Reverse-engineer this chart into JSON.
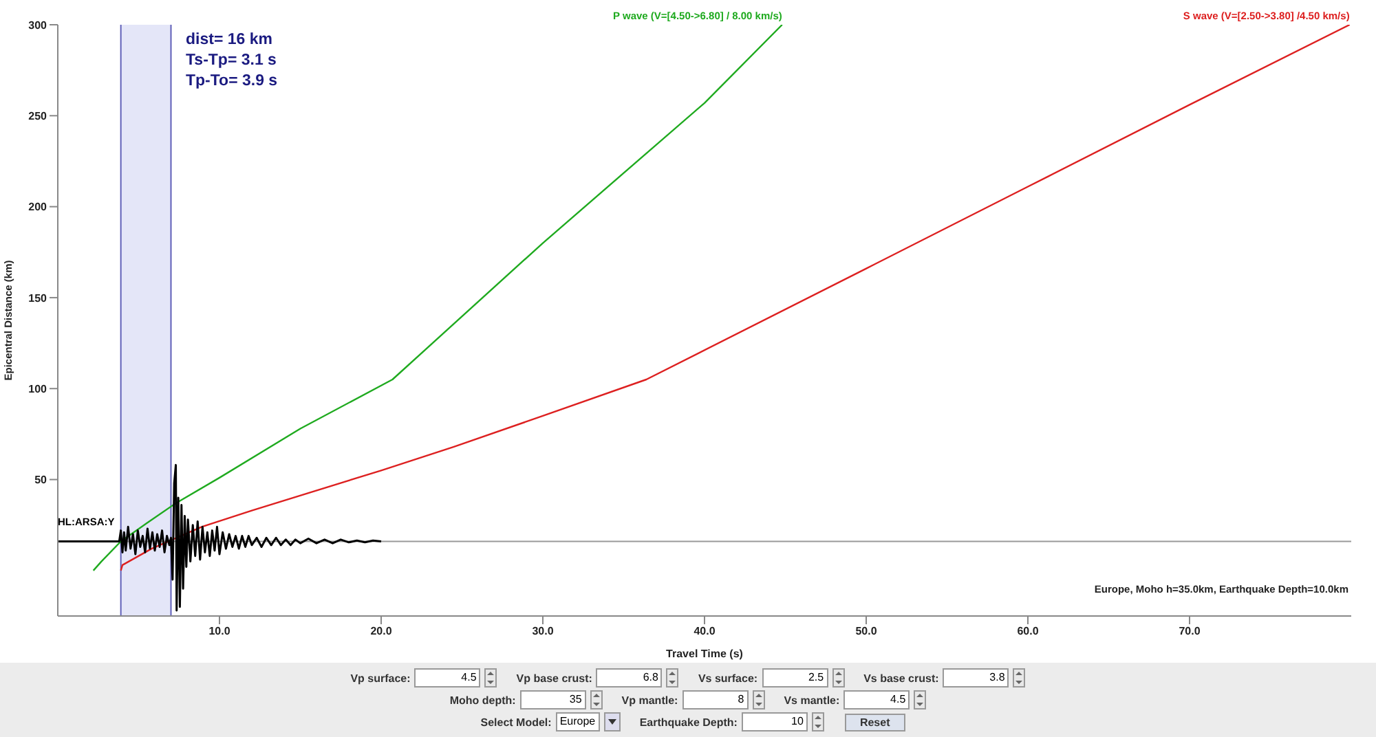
{
  "chart_data": {
    "type": "line",
    "xlabel": "Travel Time (s)",
    "ylabel": "Epicentral Distance (km)",
    "xlim": [
      0,
      80
    ],
    "xticks": [
      {
        "value": 10,
        "label": "10.0"
      },
      {
        "value": 20,
        "label": "20.0"
      },
      {
        "value": 30,
        "label": "30.0"
      },
      {
        "value": 40,
        "label": "40.0"
      },
      {
        "value": 50,
        "label": "50.0"
      },
      {
        "value": 60,
        "label": "60.0"
      },
      {
        "value": 70,
        "label": "70.0"
      }
    ],
    "ylim": [
      -25,
      300
    ],
    "yticks": [
      50,
      100,
      150,
      200,
      250,
      300
    ],
    "marker": "none",
    "line_style": "solid",
    "series": [
      {
        "name": "P wave (V=[4.50->6.80] / 8.00 km/s)",
        "color": "#1faa1f",
        "x": [
          2.2,
          2.7,
          3.9,
          5.5,
          7.3,
          10,
          15,
          20.7,
          30,
          40,
          44.8
        ],
        "values": [
          0,
          5,
          16,
          26,
          37,
          51,
          78,
          105,
          180,
          257,
          300
        ]
      },
      {
        "name": "S wave (V=[2.50->3.80] /4.50 km/s)",
        "color": "#dd2020",
        "x": [
          3.9,
          4.0,
          5.8,
          8.9,
          12,
          20,
          24.5,
          30,
          36.4,
          50,
          60,
          70,
          79.9
        ],
        "values": [
          0,
          3,
          12,
          24,
          33,
          55,
          68,
          85,
          105,
          166,
          211,
          256,
          300
        ]
      },
      {
        "name": "HL:ARSA:Y",
        "color": "#000000",
        "x": [
          0,
          3.8,
          3.9,
          4.0,
          4.1,
          4.2,
          4.35,
          4.5,
          4.65,
          4.8,
          4.95,
          5.1,
          5.25,
          5.4,
          5.55,
          5.7,
          5.85,
          6.0,
          6.15,
          6.3,
          6.45,
          6.6,
          6.75,
          6.9,
          7.0,
          7.1,
          7.2,
          7.3,
          7.35,
          7.45,
          7.55,
          7.65,
          7.75,
          7.85,
          7.95,
          8.05,
          8.2,
          8.35,
          8.5,
          8.65,
          8.8,
          8.95,
          9.1,
          9.25,
          9.4,
          9.55,
          9.7,
          9.85,
          10.0,
          10.2,
          10.4,
          10.6,
          10.8,
          11.0,
          11.2,
          11.4,
          11.6,
          11.8,
          12.0,
          12.3,
          12.6,
          12.9,
          13.2,
          13.5,
          13.8,
          14.1,
          14.4,
          14.7,
          15.0,
          15.5,
          16.0,
          16.5,
          17.0,
          17.5,
          18.0,
          18.5,
          19.0,
          19.5,
          20.0
        ],
        "values": [
          16,
          16,
          22,
          10,
          21,
          11,
          24,
          12,
          20,
          9,
          22,
          13,
          19,
          10,
          23,
          12,
          21,
          11,
          20,
          13,
          22,
          10,
          19,
          14,
          18,
          -5,
          48,
          58,
          -22,
          40,
          -20,
          36,
          -10,
          30,
          2,
          28,
          5,
          25,
          8,
          27,
          6,
          24,
          10,
          21,
          8,
          22,
          11,
          24,
          9,
          21,
          12,
          20,
          13,
          19,
          12,
          19,
          13,
          19,
          14,
          18,
          13,
          18,
          14,
          18,
          14,
          17,
          14,
          17,
          15,
          17.5,
          15,
          17,
          15,
          17,
          15.5,
          16.5,
          15.5,
          16.5,
          16
        ]
      }
    ],
    "ref_lines": [
      {
        "axis": "y",
        "value": 16,
        "color": "#999999"
      },
      {
        "axis": "x",
        "value": 3.9,
        "color": "#6060b8"
      },
      {
        "axis": "x",
        "value": 7.0,
        "color": "#6060b8"
      }
    ],
    "bands": [
      {
        "axis": "x",
        "from": 3.9,
        "to": 7.0,
        "color": "#e4e6f8"
      }
    ],
    "annotations": [
      "dist= 16 km",
      "Ts-Tp= 3.1 s",
      "Tp-To= 3.9 s",
      "Europe, Moho h=35.0km, Earthquake Depth=10.0km",
      "Vp surface:",
      "4.5",
      "Vp base crust:",
      "6.8",
      "Vs surface:",
      "2.5",
      "Vs base crust:",
      "3.8",
      "Moho depth:",
      "35",
      "Vp mantle:",
      "8",
      "Vs mantle:",
      "4.5",
      "Select Model:",
      "Europe",
      "Earthquake Depth:",
      "10",
      "Reset"
    ]
  }
}
